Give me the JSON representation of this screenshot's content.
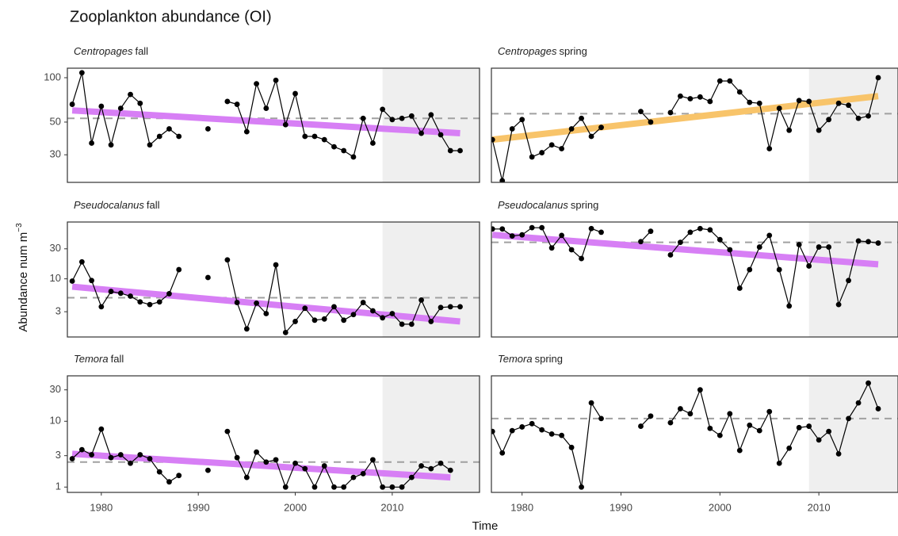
{
  "title": "Zooplankton abundance (OI)",
  "y_label": "Abundance num m",
  "y_label_sup": "−3",
  "x_label": "Time",
  "chart_data": [
    {
      "type": "line",
      "species": "Centropages",
      "season": "fall",
      "color": "#000000",
      "x": [
        1977,
        1978,
        1979,
        1980,
        1981,
        1982,
        1983,
        1984,
        1985,
        1986,
        1987,
        1988,
        1989,
        1990,
        1991,
        1992,
        1993,
        1994,
        1995,
        1996,
        1997,
        1998,
        1999,
        2000,
        2001,
        2002,
        2003,
        2004,
        2005,
        2006,
        2007,
        2008,
        2009,
        2010,
        2011,
        2012,
        2013,
        2014,
        2015,
        2016,
        2017
      ],
      "values": [
        66,
        108,
        36,
        64,
        35,
        62,
        77,
        67,
        35,
        40,
        45,
        40,
        null,
        null,
        45,
        null,
        69,
        66,
        43,
        91,
        62,
        96,
        48,
        78,
        40,
        40,
        38,
        34,
        32,
        29,
        53,
        36,
        61,
        52,
        53,
        55,
        42,
        56,
        41,
        32,
        32
      ],
      "trend": [
        60,
        42
      ],
      "trend_x": [
        1977,
        2017
      ],
      "trend_color": "#d77ff5",
      "mean": 53,
      "shade_from": 2009,
      "xlim": [
        1976.5,
        2019
      ],
      "ylim": [
        19.5,
        116
      ],
      "log_y": true,
      "yticks": [
        30,
        50,
        100
      ]
    },
    {
      "type": "line",
      "species": "Centropages",
      "season": "spring",
      "color": "#000000",
      "x": [
        1977,
        1978,
        1979,
        1980,
        1981,
        1982,
        1983,
        1984,
        1985,
        1986,
        1987,
        1988,
        1989,
        1990,
        1991,
        1992,
        1993,
        1994,
        1995,
        1996,
        1997,
        1998,
        1999,
        2000,
        2001,
        2002,
        2003,
        2004,
        2005,
        2006,
        2007,
        2008,
        2009,
        2010,
        2011,
        2012,
        2013,
        2014,
        2015,
        2016
      ],
      "values": [
        38,
        20,
        45,
        52,
        29,
        31,
        35,
        33,
        45,
        53,
        40,
        46,
        null,
        null,
        null,
        59,
        50,
        null,
        58,
        75,
        72,
        74,
        69,
        95,
        95,
        80,
        68,
        67,
        33,
        62,
        44,
        70,
        69,
        44,
        52,
        67,
        65,
        53,
        55,
        100
      ],
      "trend": [
        38,
        75
      ],
      "trend_x": [
        1977,
        2016
      ],
      "trend_color": "#f8c46a",
      "mean": 57,
      "shade_from": 2009,
      "xlim": [
        1976.9,
        2018
      ],
      "ylim": [
        19.5,
        116
      ],
      "log_y": true
    },
    {
      "type": "line",
      "species": "Pseudocalanus",
      "season": "fall",
      "color": "#000000",
      "x": [
        1977,
        1978,
        1979,
        1980,
        1981,
        1982,
        1983,
        1984,
        1985,
        1986,
        1987,
        1988,
        1989,
        1990,
        1991,
        1992,
        1993,
        1994,
        1995,
        1996,
        1997,
        1998,
        1999,
        2000,
        2001,
        2002,
        2003,
        2004,
        2005,
        2006,
        2007,
        2008,
        2009,
        2010,
        2011,
        2012,
        2013,
        2014,
        2015,
        2016,
        2017
      ],
      "values": [
        9.2,
        18.6,
        9.4,
        3.6,
        6.3,
        5.9,
        5.3,
        4.3,
        3.9,
        4.3,
        5.8,
        14,
        null,
        null,
        10.5,
        null,
        20,
        4.2,
        1.6,
        4.1,
        2.8,
        16.7,
        1.4,
        2.1,
        3.4,
        2.2,
        2.3,
        3.6,
        2.2,
        2.7,
        4.2,
        3.1,
        2.4,
        2.8,
        1.9,
        1.9,
        4.6,
        2.1,
        3.5,
        3.6,
        3.6
      ],
      "trend": [
        7.5,
        2.1
      ],
      "trend_x": [
        1977,
        2017
      ],
      "trend_color": "#d77ff5",
      "mean": 5,
      "shade_from": 2009,
      "xlim": [
        1976.5,
        2019
      ],
      "ylim": [
        1.19,
        80
      ],
      "log_y": true,
      "yticks": [
        3,
        10,
        30
      ]
    },
    {
      "type": "line",
      "species": "Pseudocalanus",
      "season": "spring",
      "color": "#000000",
      "x": [
        1977,
        1978,
        1979,
        1980,
        1981,
        1982,
        1983,
        1984,
        1985,
        1986,
        1987,
        1988,
        1989,
        1990,
        1991,
        1992,
        1993,
        1994,
        1995,
        1996,
        1997,
        1998,
        1999,
        2000,
        2001,
        2002,
        2003,
        2004,
        2005,
        2006,
        2007,
        2008,
        2009,
        2010,
        2011,
        2012,
        2013,
        2014,
        2015,
        2016
      ],
      "values": [
        62,
        62,
        48,
        50,
        65,
        65,
        31,
        49,
        29,
        21,
        63,
        55,
        null,
        null,
        null,
        39,
        57,
        null,
        24,
        38,
        55,
        63,
        60,
        42,
        29,
        7.1,
        14,
        32,
        49,
        14,
        3.7,
        35,
        16,
        32,
        32,
        3.9,
        9.4,
        40,
        39,
        37
      ],
      "trend": [
        50,
        17
      ],
      "trend_x": [
        1977,
        2016
      ],
      "trend_color": "#d77ff5",
      "mean": 38,
      "shade_from": 2009,
      "xlim": [
        1976.9,
        2018
      ],
      "ylim": [
        1.19,
        80
      ],
      "log_y": true
    },
    {
      "type": "line",
      "species": "Temora",
      "season": "fall",
      "color": "#000000",
      "x": [
        1977,
        1978,
        1979,
        1980,
        1981,
        1982,
        1983,
        1984,
        1985,
        1986,
        1987,
        1988,
        1989,
        1990,
        1991,
        1992,
        1993,
        1994,
        1995,
        1996,
        1997,
        1998,
        1999,
        2000,
        2001,
        2002,
        2003,
        2004,
        2005,
        2006,
        2007,
        2008,
        2009,
        2010,
        2011,
        2012,
        2013,
        2014,
        2015,
        2016
      ],
      "values": [
        2.7,
        3.7,
        3.1,
        7.6,
        2.8,
        3.1,
        2.3,
        3.1,
        2.7,
        1.7,
        1.2,
        1.5,
        null,
        null,
        1.8,
        null,
        7.0,
        2.8,
        1.4,
        3.4,
        2.4,
        2.6,
        1.0,
        2.3,
        1.9,
        1.0,
        2.1,
        1.0,
        1.0,
        1.4,
        1.6,
        2.6,
        1.0,
        1.0,
        1.0,
        1.4,
        2.1,
        1.9,
        2.3,
        1.8
      ],
      "trend": [
        3.2,
        1.4
      ],
      "trend_x": [
        1977,
        2016
      ],
      "trend_color": "#d77ff5",
      "mean": 2.4,
      "shade_from": 2009,
      "xlim": [
        1976.5,
        2019
      ],
      "ylim": [
        0.83,
        49
      ],
      "log_y": true,
      "yticks": [
        1,
        3,
        10,
        30
      ],
      "xticks": [
        1980,
        1990,
        2000,
        2010
      ]
    },
    {
      "type": "line",
      "species": "Temora",
      "season": "spring",
      "color": "#000000",
      "x": [
        1977,
        1978,
        1979,
        1980,
        1981,
        1982,
        1983,
        1984,
        1985,
        1986,
        1987,
        1988,
        1989,
        1990,
        1991,
        1992,
        1993,
        1994,
        1995,
        1996,
        1997,
        1998,
        1999,
        2000,
        2001,
        2002,
        2003,
        2004,
        2005,
        2006,
        2007,
        2008,
        2009,
        2010,
        2011,
        2012,
        2013,
        2014,
        2015,
        2016
      ],
      "values": [
        7.0,
        3.3,
        7.2,
        8.2,
        9.2,
        7.4,
        6.4,
        6.1,
        4.0,
        1.0,
        19,
        11,
        null,
        null,
        null,
        8.4,
        12,
        null,
        9.5,
        15.5,
        13,
        30,
        7.8,
        6.1,
        13,
        3.6,
        8.7,
        7.2,
        14,
        2.3,
        3.9,
        8.0,
        8.4,
        5.2,
        7.0,
        3.2,
        11,
        19,
        38,
        15.5
      ],
      "mean": 11,
      "shade_from": 2009,
      "xlim": [
        1976.9,
        2018
      ],
      "ylim": [
        0.83,
        49
      ],
      "log_y": true,
      "xticks": [
        1980,
        1990,
        2000,
        2010
      ]
    }
  ]
}
